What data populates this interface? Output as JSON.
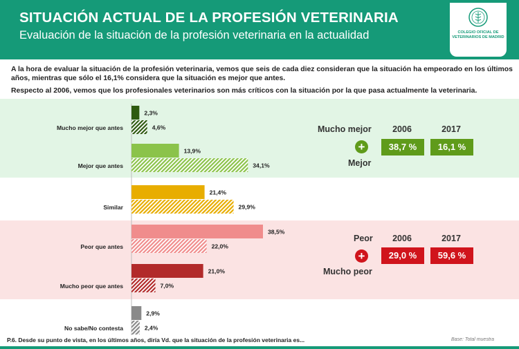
{
  "header": {
    "title": "SITUACIÓN ACTUAL DE LA PROFESIÓN VETERINARIA",
    "subtitle": "Evaluación de la situación de la profesión veterinaria en la actualidad",
    "logo_text": "COLEGIO OFICIAL DE VETERINARIOS DE MADRID"
  },
  "intro": {
    "p1": "A la hora de evaluar la situación de la profesión veterinaria, vemos que seis de cada diez consideran que la situación ha empeorado en los últimos años, mientras que sólo el 16,1% considera que la situación es mejor que antes.",
    "p2": "Respecto al 2006, vemos que los profesionales veterinarios son más críticos con la situación por la que pasa actualmente la veterinaria."
  },
  "colors": {
    "header_bg": "#159a78",
    "mucho_mejor": "#2e5a10",
    "mejor": "#8bc34a",
    "similar": "#e8ad00",
    "peor": "#f08c8c",
    "mucho_peor": "#b22a2a",
    "ns_nc": "#8a8a8a",
    "green_box": "#5f9b1a",
    "red_box": "#d0141c"
  },
  "chart_data": {
    "type": "bar",
    "orientation": "horizontal",
    "categories": [
      "Mucho mejor que antes",
      "Mejor que antes",
      "Similar",
      "Peor que antes",
      "Mucho peor que antes",
      "No sabe/No contesta"
    ],
    "series": [
      {
        "values": [
          2.3,
          13.9,
          21.4,
          38.5,
          21.0,
          2.9
        ],
        "labels": [
          "2,3%",
          "13,9%",
          "21,4%",
          "38,5%",
          "21,0%",
          "2,9%"
        ],
        "pattern": "solid"
      },
      {
        "values": [
          4.6,
          34.1,
          29.9,
          22.0,
          7.0,
          2.4
        ],
        "labels": [
          "4,6%",
          "34,1%",
          "29,9%",
          "22,0%",
          "7,0%",
          "2,4%"
        ],
        "pattern": "hatched"
      }
    ],
    "xlim": [
      0,
      40
    ]
  },
  "comparison": {
    "mejor": {
      "label_top": "Mucho mejor",
      "label_bottom": "Mejor",
      "plus": "+",
      "year1": "2006",
      "year2": "2017",
      "value1": "38,7 %",
      "value2": "16,1 %"
    },
    "peor": {
      "label_top": "Peor",
      "label_bottom": "Mucho peor",
      "plus": "+",
      "year1": "2006",
      "year2": "2017",
      "value1": "29,0 %",
      "value2": "59,6 %"
    }
  },
  "footer": {
    "question": "P.6. Desde su punto de vista, en los últimos años, diría Vd. que la situación de la profesión veterinaria es...",
    "base": "Base: Total muestra"
  }
}
